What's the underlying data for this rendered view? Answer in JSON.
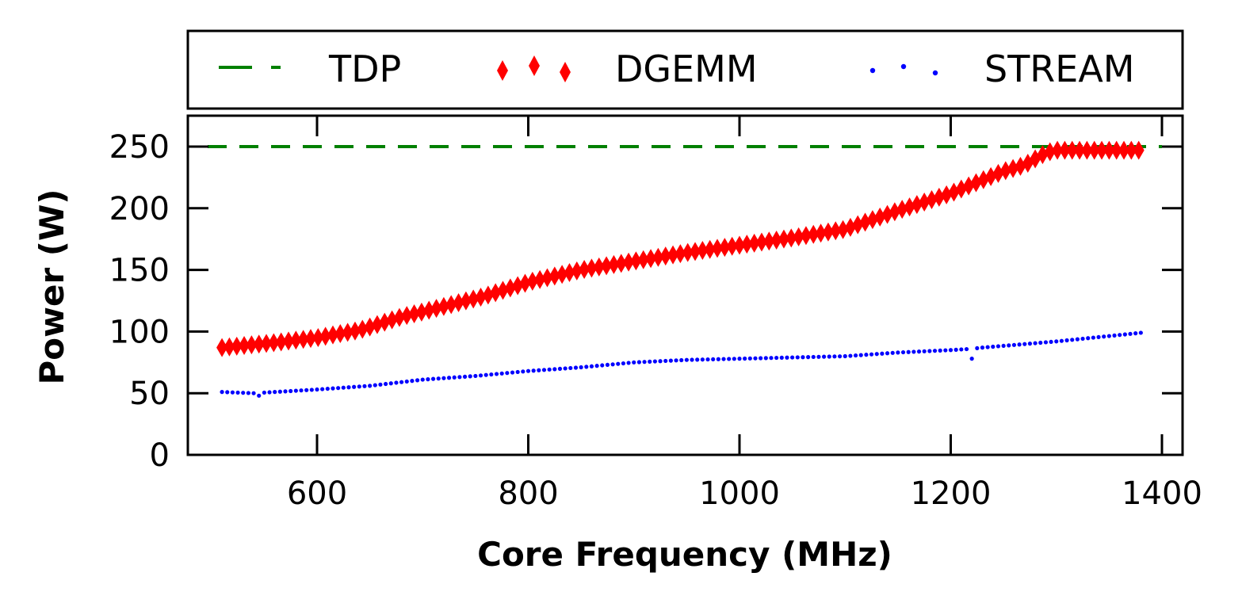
{
  "chart_data": {
    "type": "scatter",
    "xlabel": "Core Frequency (MHz)",
    "ylabel": "Power (W)",
    "xlim": [
      477,
      1420
    ],
    "ylim": [
      0,
      275
    ],
    "xticks": [
      600,
      800,
      1000,
      1200,
      1400
    ],
    "yticks": [
      0,
      50,
      100,
      150,
      200,
      250
    ],
    "xtick_labels": [
      "600",
      "800",
      "1000",
      "1200",
      "1400"
    ],
    "ytick_labels": [
      "0",
      "50",
      "100",
      "150",
      "200",
      "250"
    ],
    "legend_position": "top, outside, single row",
    "series": [
      {
        "name": "TDP",
        "style": "dashed-line",
        "color": "#008000",
        "x": [
          490,
          1415
        ],
        "y": [
          250,
          250
        ]
      },
      {
        "name": "DGEMM",
        "style": "diamond-markers",
        "color": "#ff0000",
        "x_start": 510,
        "x_end": 1380,
        "step": 7,
        "anchors": [
          [
            510,
            87
          ],
          [
            560,
            91
          ],
          [
            600,
            95
          ],
          [
            640,
            101
          ],
          [
            680,
            112
          ],
          [
            700,
            116
          ],
          [
            760,
            129
          ],
          [
            800,
            140
          ],
          [
            850,
            150
          ],
          [
            900,
            157
          ],
          [
            950,
            164
          ],
          [
            1000,
            170
          ],
          [
            1050,
            176
          ],
          [
            1100,
            183
          ],
          [
            1150,
            198
          ],
          [
            1200,
            212
          ],
          [
            1250,
            230
          ],
          [
            1270,
            235
          ],
          [
            1290,
            245
          ],
          [
            1300,
            247
          ],
          [
            1380,
            247
          ]
        ]
      },
      {
        "name": "STREAM",
        "style": "dot-markers",
        "color": "#0000ff",
        "x_start": 510,
        "x_end": 1380,
        "step": 5,
        "anchors": [
          [
            510,
            51
          ],
          [
            540,
            50
          ],
          [
            560,
            51
          ],
          [
            600,
            53
          ],
          [
            650,
            56
          ],
          [
            700,
            61
          ],
          [
            750,
            64
          ],
          [
            800,
            68
          ],
          [
            850,
            71
          ],
          [
            900,
            75
          ],
          [
            950,
            77
          ],
          [
            1000,
            78
          ],
          [
            1100,
            80
          ],
          [
            1150,
            83
          ],
          [
            1200,
            85
          ],
          [
            1220,
            86
          ],
          [
            1230,
            87
          ],
          [
            1300,
            92
          ],
          [
            1380,
            99
          ]
        ],
        "outliers": [
          [
            545,
            48
          ],
          [
            1222,
            78
          ]
        ]
      }
    ]
  },
  "legend": {
    "items": [
      {
        "label": "TDP",
        "color": "#008000"
      },
      {
        "label": "DGEMM",
        "color": "#ff0000"
      },
      {
        "label": "STREAM",
        "color": "#0000ff"
      }
    ]
  }
}
